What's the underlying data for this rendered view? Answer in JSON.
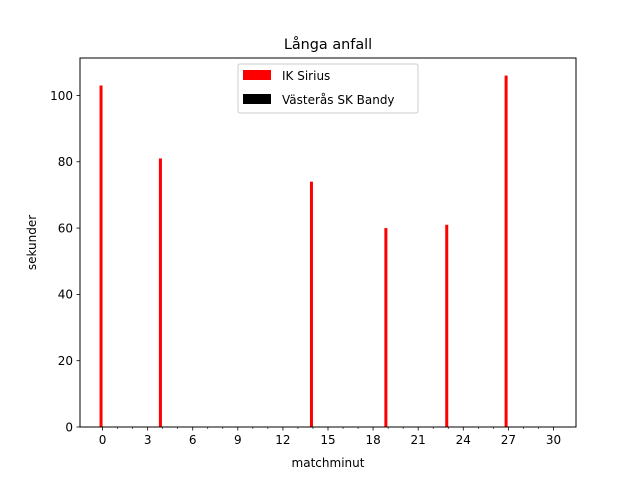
{
  "chart_data": {
    "type": "bar",
    "title": "Långa anfall",
    "xlabel": "matchminut",
    "ylabel": "sekunder",
    "xlim": [
      -1.5,
      31.5
    ],
    "ylim": [
      0,
      111.3
    ],
    "x_ticks": [
      0,
      3,
      6,
      9,
      12,
      15,
      18,
      21,
      24,
      27,
      30
    ],
    "x_minor_ticks": [
      1,
      2,
      4,
      5,
      7,
      8,
      10,
      11,
      13,
      14,
      16,
      17,
      19,
      20,
      22,
      23,
      25,
      26,
      28,
      29
    ],
    "y_ticks": [
      0,
      20,
      40,
      60,
      80,
      100
    ],
    "legend": "upper center",
    "grid": false,
    "series": [
      {
        "name": "IK Sirius",
        "color": "#ff0000",
        "points": [
          {
            "x": -0.1,
            "y": 103
          },
          {
            "x": 3.85,
            "y": 81
          },
          {
            "x": 13.9,
            "y": 74
          },
          {
            "x": 18.85,
            "y": 60
          },
          {
            "x": 22.9,
            "y": 61
          },
          {
            "x": 26.85,
            "y": 106
          }
        ]
      },
      {
        "name": "Västerås SK Bandy",
        "color": "#000000",
        "points": []
      }
    ]
  }
}
